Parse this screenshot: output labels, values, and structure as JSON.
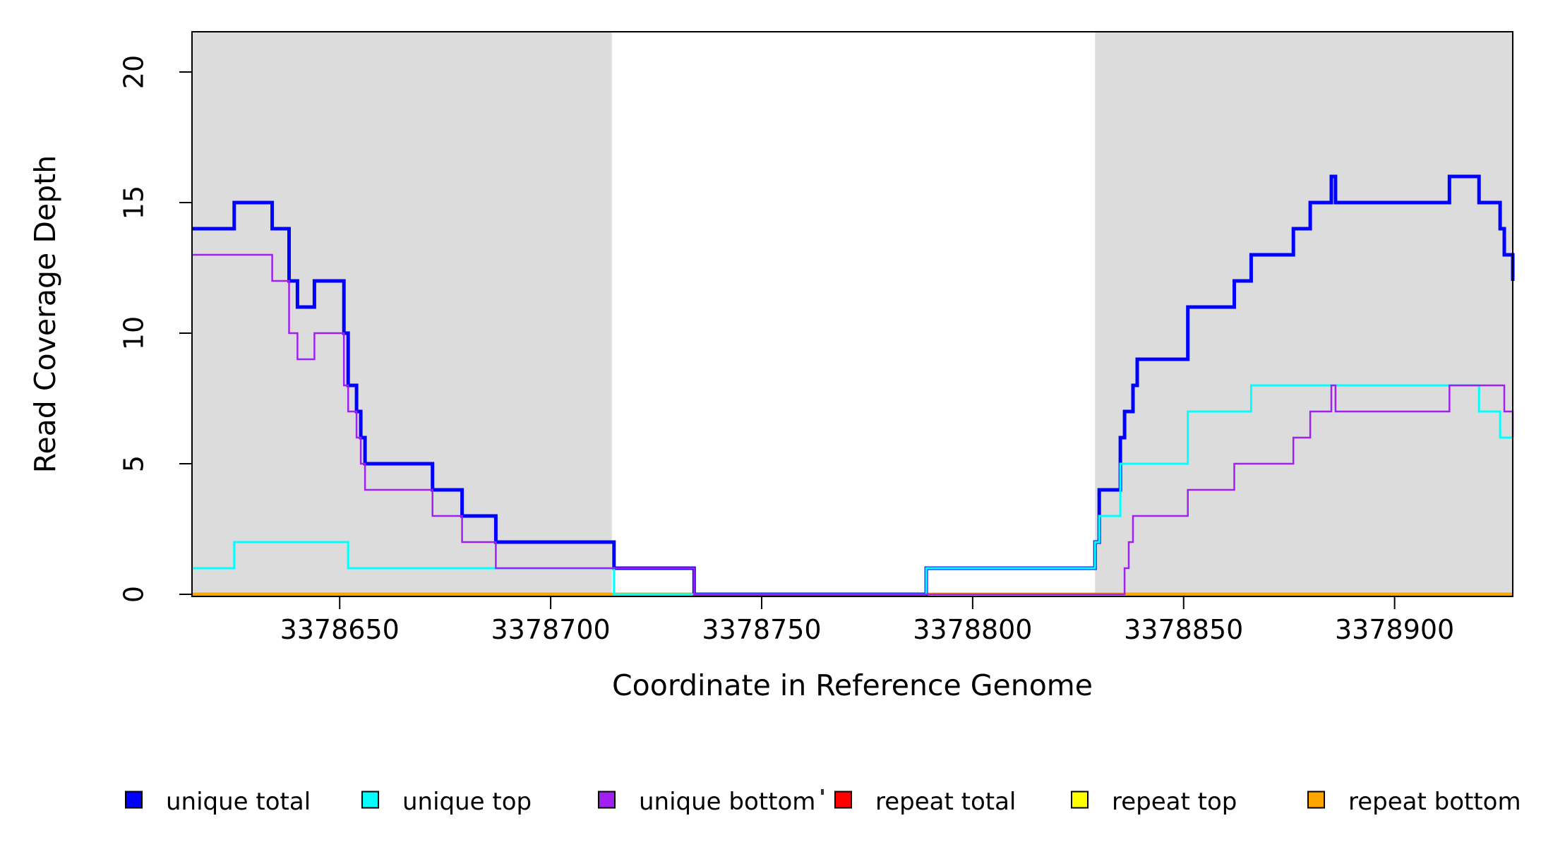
{
  "chart_data": {
    "type": "line",
    "subtype": "step",
    "title": "",
    "xlabel": "Coordinate in Reference Genome",
    "ylabel": "Read Coverage Depth",
    "xlim": [
      3378615,
      3378928
    ],
    "ylim": [
      0,
      20
    ],
    "x_ticks": [
      3378650,
      3378700,
      3378750,
      3378800,
      3378850,
      3378900
    ],
    "y_ticks": [
      0,
      5,
      10,
      15,
      20
    ],
    "grid": false,
    "legend_position": "bottom",
    "highlight_color": "#DCDCDC",
    "background_highlight_regions": [
      {
        "name": "left-masked-region",
        "from": 3378615,
        "to": 3378714.5
      },
      {
        "name": "right-masked-region",
        "from": 3378829,
        "to": 3378928
      }
    ],
    "series": [
      {
        "name": "repeat total",
        "color": "#FF0000",
        "width": 3,
        "steps": [
          [
            3378615,
            0
          ]
        ]
      },
      {
        "name": "repeat top",
        "color": "#FFFF00",
        "width": 3,
        "steps": [
          [
            3378615,
            0
          ]
        ]
      },
      {
        "name": "repeat bottom",
        "color": "#FFA500",
        "width": 5,
        "steps": [
          [
            3378615,
            0
          ]
        ]
      },
      {
        "name": "unique total",
        "color": "#0000FF",
        "width": 5,
        "steps": [
          [
            3378615,
            14
          ],
          [
            3378625,
            15
          ],
          [
            3378634,
            14
          ],
          [
            3378638,
            12
          ],
          [
            3378640,
            11
          ],
          [
            3378644,
            12
          ],
          [
            3378651,
            10
          ],
          [
            3378652,
            8
          ],
          [
            3378654,
            7
          ],
          [
            3378655,
            6
          ],
          [
            3378656,
            5
          ],
          [
            3378672,
            4
          ],
          [
            3378679,
            3
          ],
          [
            3378687,
            2
          ],
          [
            3378715,
            1
          ],
          [
            3378734,
            0
          ],
          [
            3378789,
            1
          ],
          [
            3378829,
            2
          ],
          [
            3378830,
            4
          ],
          [
            3378835,
            6
          ],
          [
            3378836,
            7
          ],
          [
            3378838,
            8
          ],
          [
            3378839,
            9
          ],
          [
            3378851,
            11
          ],
          [
            3378862,
            12
          ],
          [
            3378866,
            13
          ],
          [
            3378876,
            14
          ],
          [
            3378880,
            15
          ],
          [
            3378885,
            16
          ],
          [
            3378886,
            15
          ],
          [
            3378913,
            16
          ],
          [
            3378920,
            15
          ],
          [
            3378925,
            14
          ],
          [
            3378926,
            13
          ],
          [
            3378928,
            12
          ]
        ]
      },
      {
        "name": "unique top",
        "color": "#00FFFF",
        "width": 3,
        "steps": [
          [
            3378615,
            1
          ],
          [
            3378625,
            2
          ],
          [
            3378652,
            1
          ],
          [
            3378715,
            0
          ],
          [
            3378789,
            1
          ],
          [
            3378829,
            2
          ],
          [
            3378830,
            3
          ],
          [
            3378835,
            5
          ],
          [
            3378851,
            7
          ],
          [
            3378866,
            8
          ],
          [
            3378920,
            7
          ],
          [
            3378925,
            6
          ]
        ]
      },
      {
        "name": "unique bottom",
        "color": "#A020F0",
        "width": 2.5,
        "steps": [
          [
            3378615,
            13
          ],
          [
            3378634,
            12
          ],
          [
            3378638,
            10
          ],
          [
            3378640,
            9
          ],
          [
            3378644,
            10
          ],
          [
            3378651,
            8
          ],
          [
            3378652,
            7
          ],
          [
            3378654,
            6
          ],
          [
            3378655,
            5
          ],
          [
            3378656,
            4
          ],
          [
            3378672,
            3
          ],
          [
            3378679,
            2
          ],
          [
            3378687,
            1
          ],
          [
            3378734,
            0
          ],
          [
            3378836,
            1
          ],
          [
            3378837,
            2
          ],
          [
            3378838,
            3
          ],
          [
            3378851,
            4
          ],
          [
            3378862,
            5
          ],
          [
            3378876,
            6
          ],
          [
            3378880,
            7
          ],
          [
            3378885,
            8
          ],
          [
            3378886,
            7
          ],
          [
            3378913,
            8
          ],
          [
            3378926,
            7
          ],
          [
            3378928,
            6
          ]
        ]
      }
    ],
    "legend": {
      "items": [
        {
          "label": "unique total",
          "color": "#0000FF"
        },
        {
          "label": "unique top",
          "color": "#00FFFF"
        },
        {
          "label": "unique bottom",
          "color": "#A020F0"
        },
        {
          "label": "repeat total",
          "color": "#FF0000"
        },
        {
          "label": "repeat top",
          "color": "#FFFF00"
        },
        {
          "label": "repeat bottom",
          "color": "#FFA500"
        }
      ]
    }
  }
}
